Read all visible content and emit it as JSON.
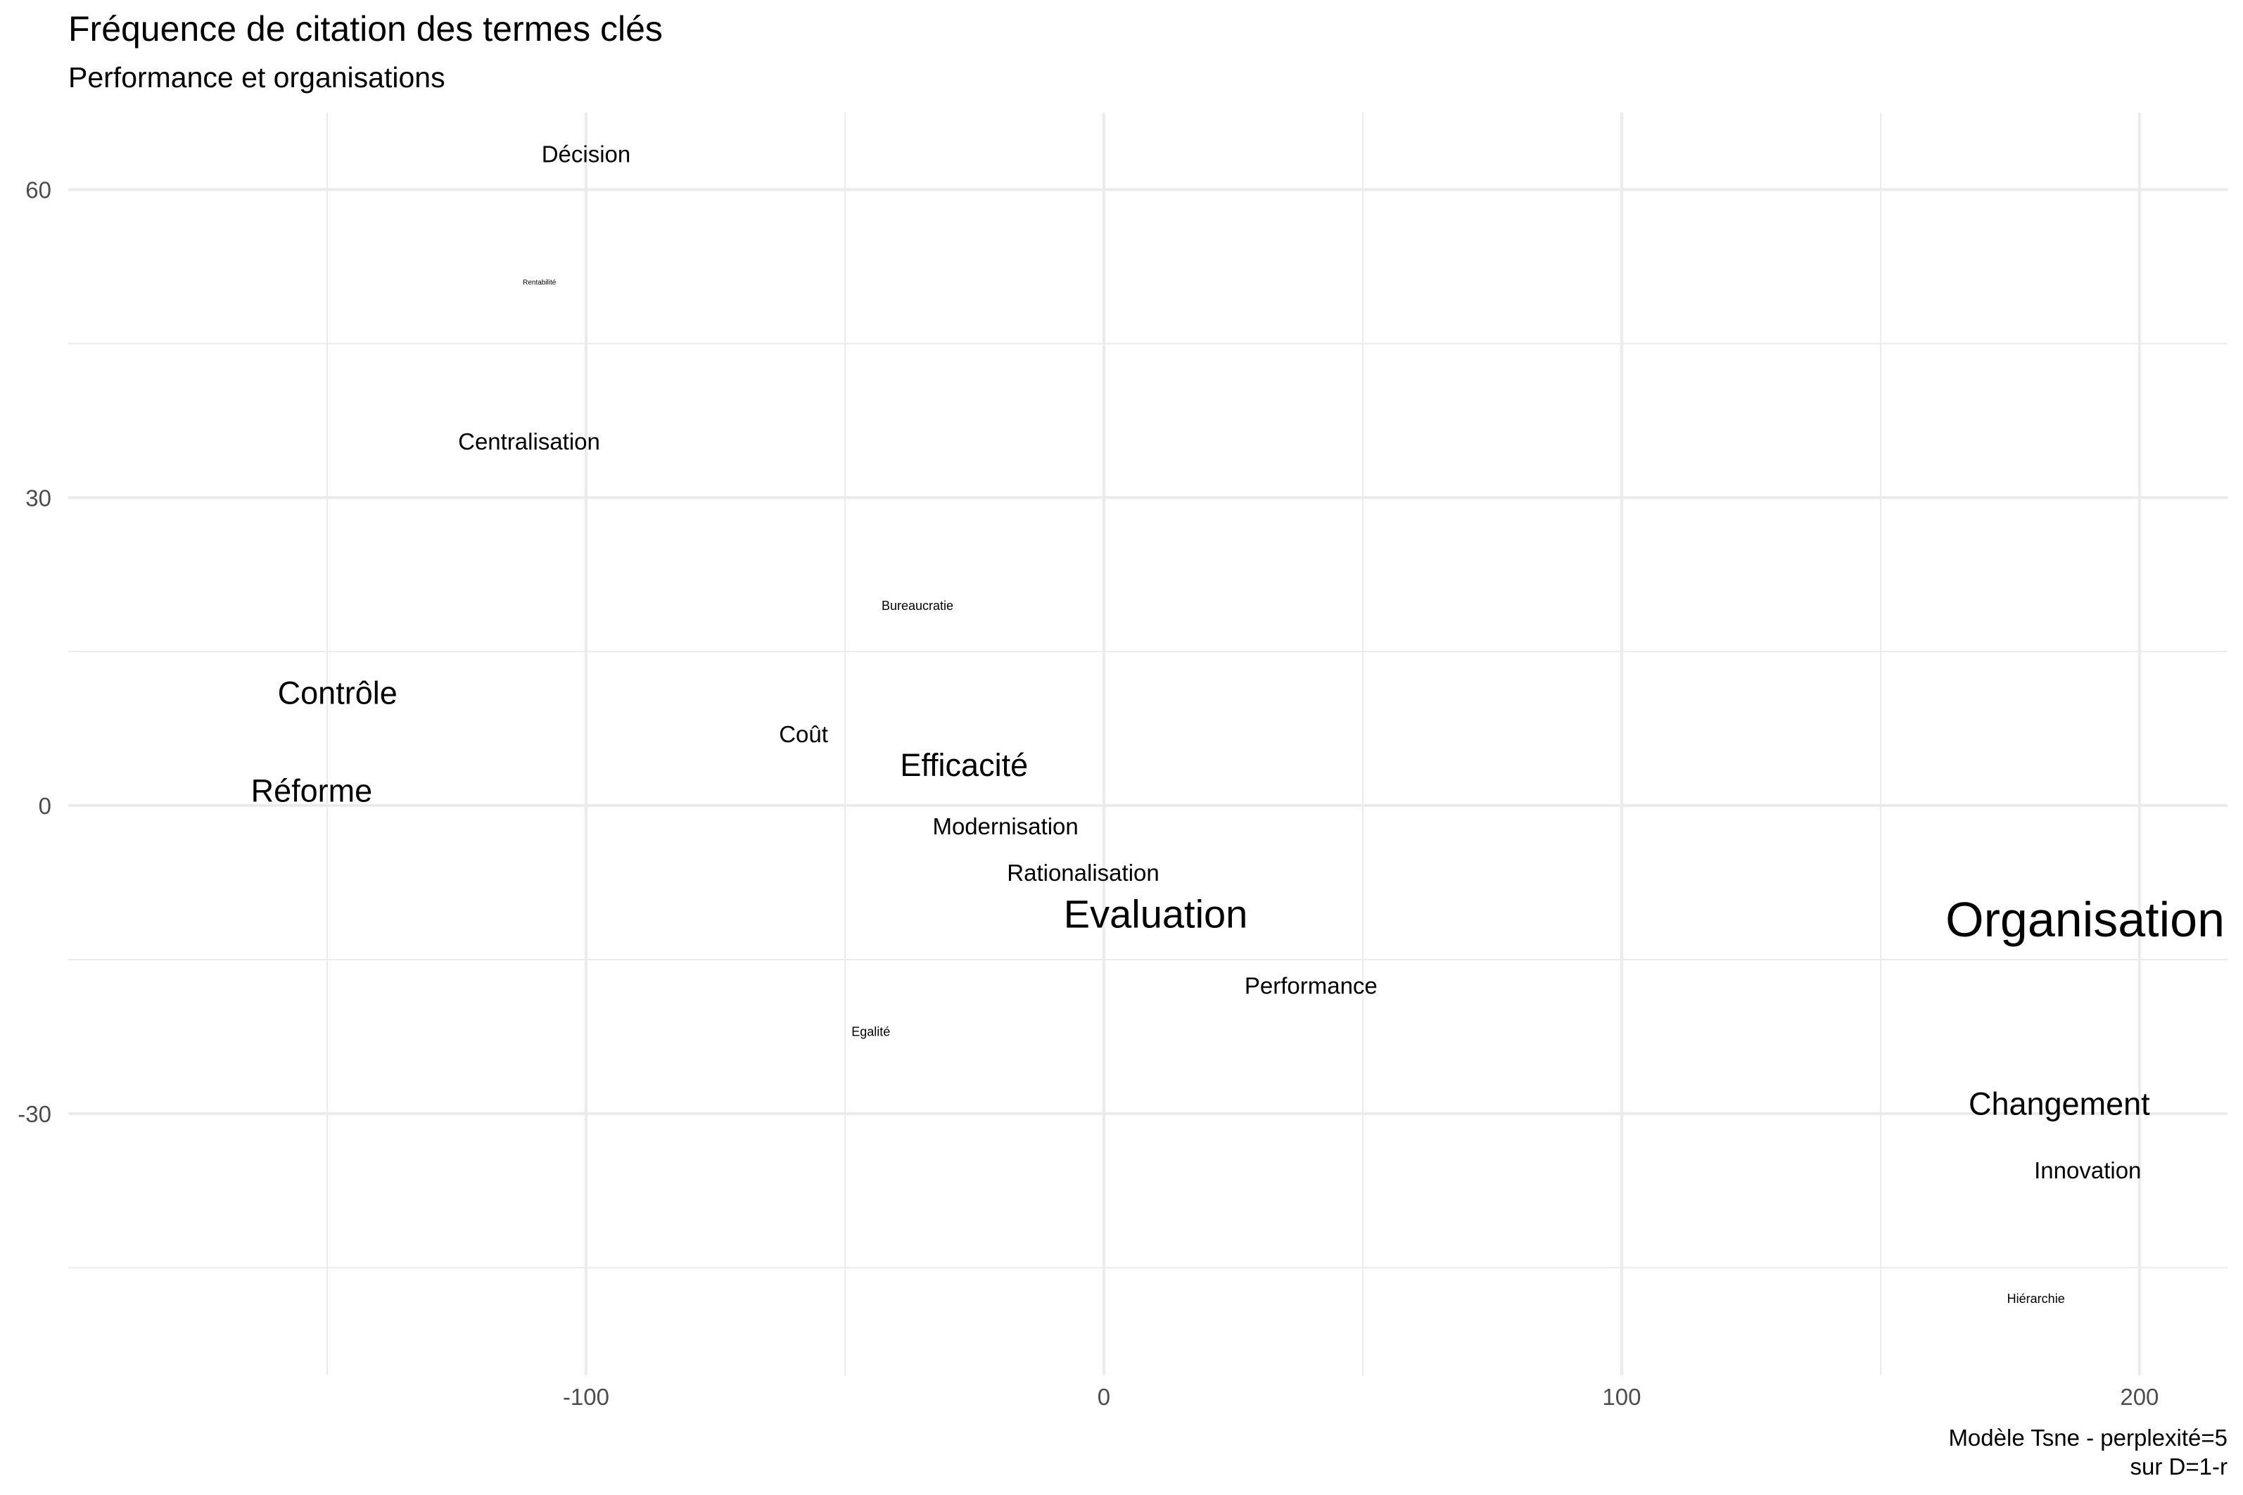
{
  "chart_data": {
    "type": "scatter",
    "title": "Fréquence de citation des termes clés",
    "subtitle": "Performance et organisations",
    "caption_lines": [
      "Modèle Tsne - perplexité=5",
      "sur D=1-r"
    ],
    "xlabel": "",
    "ylabel": "",
    "xlim": [
      -200,
      217
    ],
    "ylim": [
      -55.5,
      67.5
    ],
    "x_ticks": [
      -100,
      0,
      100,
      200
    ],
    "x_tick_labels": [
      "-100",
      "0",
      "100",
      "200"
    ],
    "x_minor_ticks": [
      -150,
      -50,
      50,
      150
    ],
    "y_ticks": [
      -30,
      0,
      30,
      60
    ],
    "y_tick_labels": [
      "-30",
      "0",
      "30",
      "60"
    ],
    "y_minor_ticks": [
      -45,
      -15,
      15,
      45
    ],
    "grid": true,
    "legend": "none",
    "label_anchor": "middle",
    "points": [
      {
        "label": "Décision",
        "x": -100,
        "y": 63.5,
        "size": 2
      },
      {
        "label": "Rentabilité",
        "x": -109,
        "y": 51,
        "size": 0
      },
      {
        "label": "Centralisation",
        "x": -111,
        "y": 35.5,
        "size": 2
      },
      {
        "label": "Bureaucratie",
        "x": -36,
        "y": 19.5,
        "size": 1
      },
      {
        "label": "Contrôle",
        "x": -148,
        "y": 11,
        "size": 3
      },
      {
        "label": "Coût",
        "x": -58,
        "y": 7,
        "size": 2
      },
      {
        "label": "Efficacité",
        "x": -27,
        "y": 4,
        "size": 3
      },
      {
        "label": "Réforme",
        "x": -153,
        "y": 1.5,
        "size": 3
      },
      {
        "label": "Modernisation",
        "x": -19,
        "y": -2,
        "size": 2
      },
      {
        "label": "Rationalisation",
        "x": -4,
        "y": -6.5,
        "size": 2
      },
      {
        "label": "Evaluation",
        "x": 10,
        "y": -10.5,
        "size": 4
      },
      {
        "label": "Organisation",
        "x": 189.5,
        "y": -11,
        "size": 5
      },
      {
        "label": "Performance",
        "x": 40,
        "y": -17.5,
        "size": 2
      },
      {
        "label": "Egalité",
        "x": -45,
        "y": -22,
        "size": 1
      },
      {
        "label": "Changement",
        "x": 184.5,
        "y": -29,
        "size": 3
      },
      {
        "label": "Innovation",
        "x": 190,
        "y": -35.5,
        "size": 2
      },
      {
        "label": "Hiérarchie",
        "x": 180,
        "y": -48,
        "size": 1
      }
    ]
  }
}
